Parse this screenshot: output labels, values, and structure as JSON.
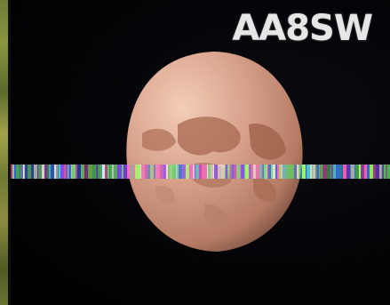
{
  "callsign": {
    "text": "AA8SW",
    "color": "#e6e6e6"
  },
  "planet": {
    "base_color": "#d29c86",
    "highlight_color": "#f0c7b2",
    "dark_patch_color": "#a7694f"
  },
  "noise_band_colors": [
    "#5bd46a",
    "#c84cc7",
    "#3b6de0",
    "#e8e8e8",
    "#7be07e",
    "#ff69c8",
    "#4fd0e0",
    "#a0ff6a",
    "#8a4bff"
  ]
}
